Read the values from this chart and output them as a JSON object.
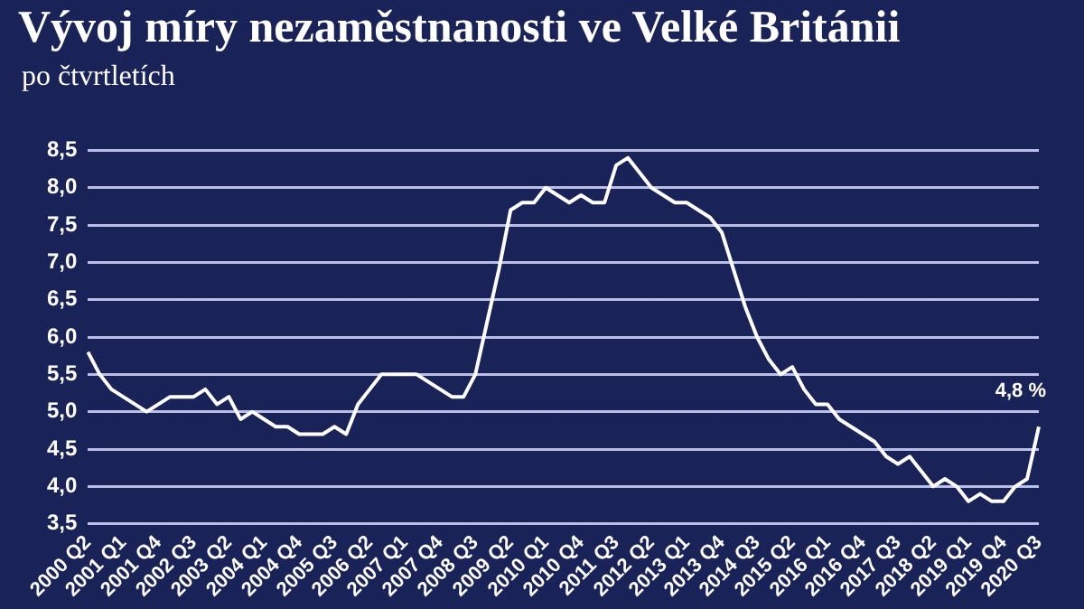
{
  "chart_data": {
    "type": "line",
    "title": "Vývoj míry nezaměstnanosti ve Velké Británii",
    "subtitle": "po čtvrtletích",
    "categories": [
      "2000 Q2",
      null,
      null,
      "2001 Q1",
      null,
      null,
      "2001 Q4",
      null,
      null,
      "2002 Q3",
      null,
      null,
      "2003 Q2",
      null,
      null,
      "2004 Q1",
      null,
      null,
      "2004 Q4",
      null,
      null,
      "2005 Q3",
      null,
      null,
      "2006 Q2",
      null,
      null,
      "2007 Q1",
      null,
      null,
      "2007 Q4",
      null,
      null,
      "2008 Q3",
      null,
      null,
      "2009 Q2",
      null,
      null,
      "2010 Q1",
      null,
      null,
      "2010 Q4",
      null,
      null,
      "2011 Q3",
      null,
      null,
      "2012 Q2",
      null,
      null,
      "2013 Q1",
      null,
      null,
      "2013 Q4",
      null,
      null,
      "2014 Q3",
      null,
      null,
      "2015 Q2",
      null,
      null,
      "2016 Q1",
      null,
      null,
      "2016 Q4",
      null,
      null,
      "2017 Q3",
      null,
      null,
      "2018 Q2",
      null,
      null,
      "2019 Q1",
      null,
      null,
      "2019 Q4",
      null,
      null,
      "2020 Q3"
    ],
    "series": [
      {
        "color": "#ffffff",
        "values": [
          5.8,
          5.5,
          5.3,
          5.2,
          5.1,
          5.0,
          5.1,
          5.2,
          5.2,
          5.2,
          5.3,
          5.1,
          5.2,
          4.9,
          5.0,
          4.9,
          4.8,
          4.8,
          4.7,
          4.7,
          4.7,
          4.8,
          4.7,
          5.1,
          5.3,
          5.5,
          5.5,
          5.5,
          5.5,
          5.4,
          5.3,
          5.2,
          5.2,
          5.5,
          6.2,
          6.9,
          7.7,
          7.8,
          7.8,
          8.0,
          7.9,
          7.8,
          7.9,
          7.8,
          7.8,
          8.3,
          8.4,
          8.2,
          8.0,
          7.9,
          7.8,
          7.8,
          7.7,
          7.6,
          7.4,
          6.9,
          6.4,
          6.0,
          5.7,
          5.5,
          5.6,
          5.3,
          5.1,
          5.1,
          4.9,
          4.8,
          4.7,
          4.6,
          4.4,
          4.3,
          4.4,
          4.2,
          4.0,
          4.1,
          4.0,
          3.8,
          3.9,
          3.8,
          3.8,
          4.0,
          4.1,
          4.8
        ],
        "value_labels": [
          null,
          null,
          null,
          null,
          null,
          null,
          null,
          null,
          null,
          null,
          null,
          null,
          null,
          null,
          null,
          null,
          null,
          null,
          null,
          null,
          null,
          null,
          null,
          null,
          null,
          null,
          null,
          null,
          null,
          null,
          null,
          null,
          null,
          null,
          null,
          null,
          null,
          null,
          null,
          null,
          null,
          null,
          null,
          null,
          null,
          null,
          null,
          null,
          null,
          null,
          null,
          null,
          null,
          null,
          null,
          null,
          null,
          null,
          null,
          null,
          null,
          null,
          null,
          null,
          null,
          null,
          null,
          null,
          null,
          null,
          null,
          null,
          null,
          null,
          null,
          null,
          null,
          null,
          null,
          null,
          null,
          "4,8 %"
        ]
      }
    ],
    "ylim": [
      3.5,
      8.5
    ],
    "yticks": [
      {
        "value": 3.5,
        "label": "3,5"
      },
      {
        "value": 4,
        "label": "4,0"
      },
      {
        "value": 4.5,
        "label": "4,5"
      },
      {
        "value": 5,
        "label": "5,0"
      },
      {
        "value": 5.5,
        "label": "5,5"
      },
      {
        "value": 6,
        "label": "6,0"
      },
      {
        "value": 6.5,
        "label": "6,5"
      },
      {
        "value": 7,
        "label": "7,0"
      },
      {
        "value": 7.5,
        "label": "7,5"
      },
      {
        "value": 8,
        "label": "8,0"
      },
      {
        "value": 8.5,
        "label": "8,5"
      }
    ],
    "grid": "y",
    "legend": false,
    "marker": "none",
    "line_style": "solid"
  }
}
